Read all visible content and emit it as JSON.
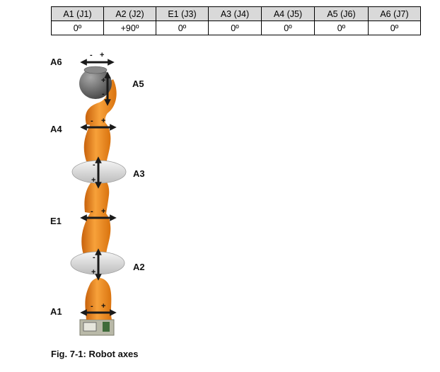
{
  "table": {
    "headers": [
      "A1 (J1)",
      "A2 (J2)",
      "E1 (J3)",
      "A3 (J4)",
      "A4 (J5)",
      "A5 (J6)",
      "A6 (J7)"
    ],
    "values": [
      "0º",
      "+90º",
      "0º",
      "0º",
      "0º",
      "0º",
      "0º"
    ]
  },
  "axes": {
    "a6": "A6",
    "a5": "A5",
    "a4": "A4",
    "a3": "A3",
    "e1": "E1",
    "a2": "A2",
    "a1": "A1"
  },
  "signs": {
    "minus": "-",
    "plus": "+"
  },
  "caption": "Fig. 7-1: Robot axes",
  "colors": {
    "link": "#f08c1c",
    "joint": "#d6d6d6",
    "head": "#6b6b6b",
    "arrow": "#1a1a1a"
  }
}
